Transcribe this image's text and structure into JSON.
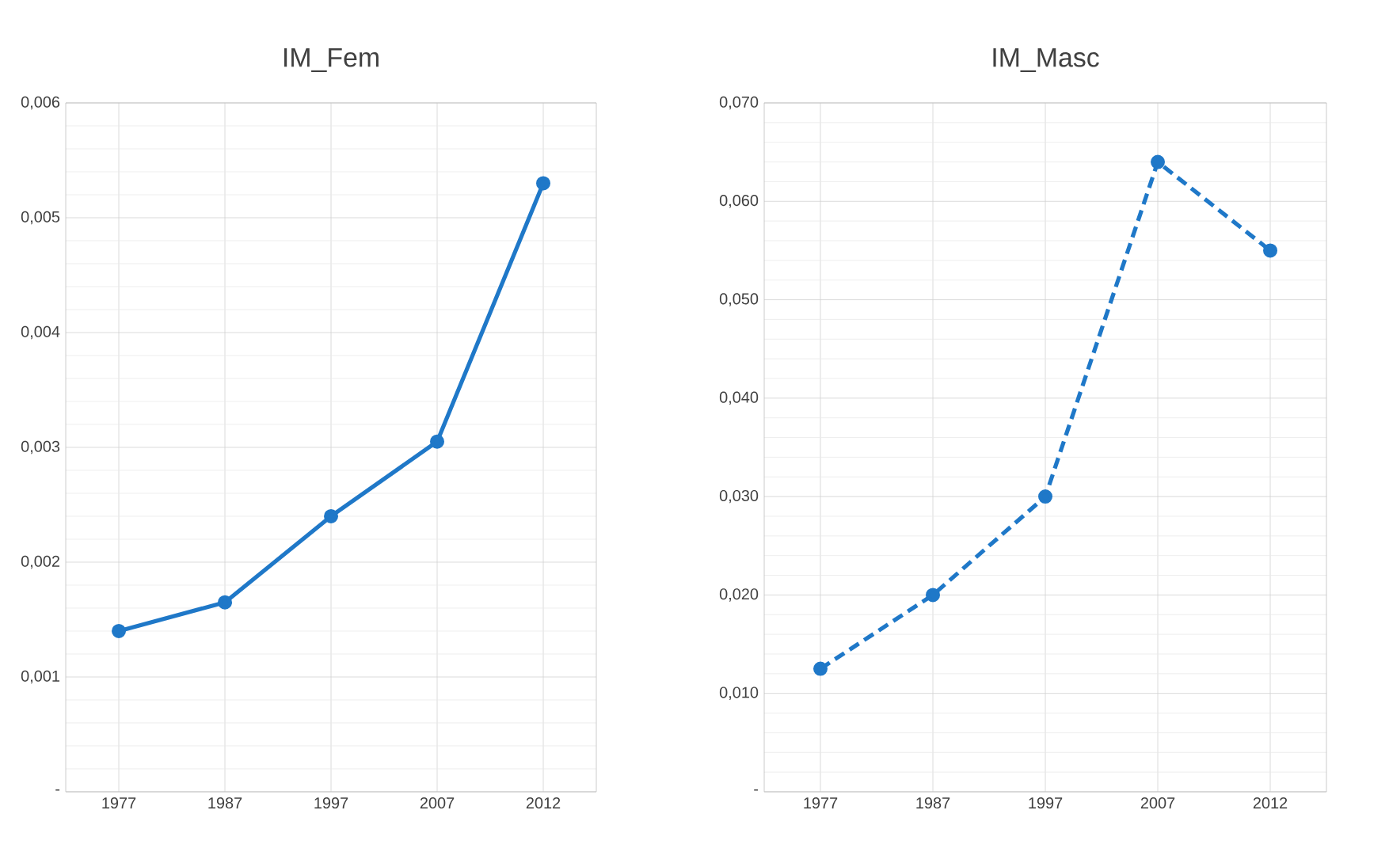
{
  "chart_data": [
    {
      "type": "line",
      "title": "IM_Fem",
      "categories": [
        "1977",
        "1987",
        "1997",
        "2007",
        "2012"
      ],
      "series": [
        {
          "color": "#1f78c8",
          "values": [
            0.0014,
            0.00165,
            0.0024,
            0.00305,
            0.0053
          ]
        }
      ],
      "ylim": [
        0,
        0.006
      ],
      "yticks": [
        {
          "value": 0,
          "label": "-"
        },
        {
          "value": 0.001,
          "label": "0,001"
        },
        {
          "value": 0.002,
          "label": "0,002"
        },
        {
          "value": 0.003,
          "label": "0,003"
        },
        {
          "value": 0.004,
          "label": "0,004"
        },
        {
          "value": 0.005,
          "label": "0,005"
        },
        {
          "value": 0.006,
          "label": "0,006"
        }
      ],
      "grid": true,
      "marker": "circle",
      "line_style": "solid"
    },
    {
      "type": "line",
      "title": "IM_Masc",
      "categories": [
        "1977",
        "1987",
        "1997",
        "2007",
        "2012"
      ],
      "series": [
        {
          "color": "#1f78c8",
          "values": [
            0.0125,
            0.02,
            0.03,
            0.064,
            0.055
          ]
        }
      ],
      "ylim": [
        0,
        0.07
      ],
      "yticks": [
        {
          "value": 0,
          "label": "-"
        },
        {
          "value": 0.01,
          "label": "0,010"
        },
        {
          "value": 0.02,
          "label": "0,020"
        },
        {
          "value": 0.03,
          "label": "0,030"
        },
        {
          "value": 0.04,
          "label": "0,040"
        },
        {
          "value": 0.05,
          "label": "0,050"
        },
        {
          "value": 0.06,
          "label": "0,060"
        },
        {
          "value": 0.07,
          "label": "0,070"
        }
      ],
      "grid": true,
      "marker": "circle",
      "line_style": "dashed"
    }
  ]
}
